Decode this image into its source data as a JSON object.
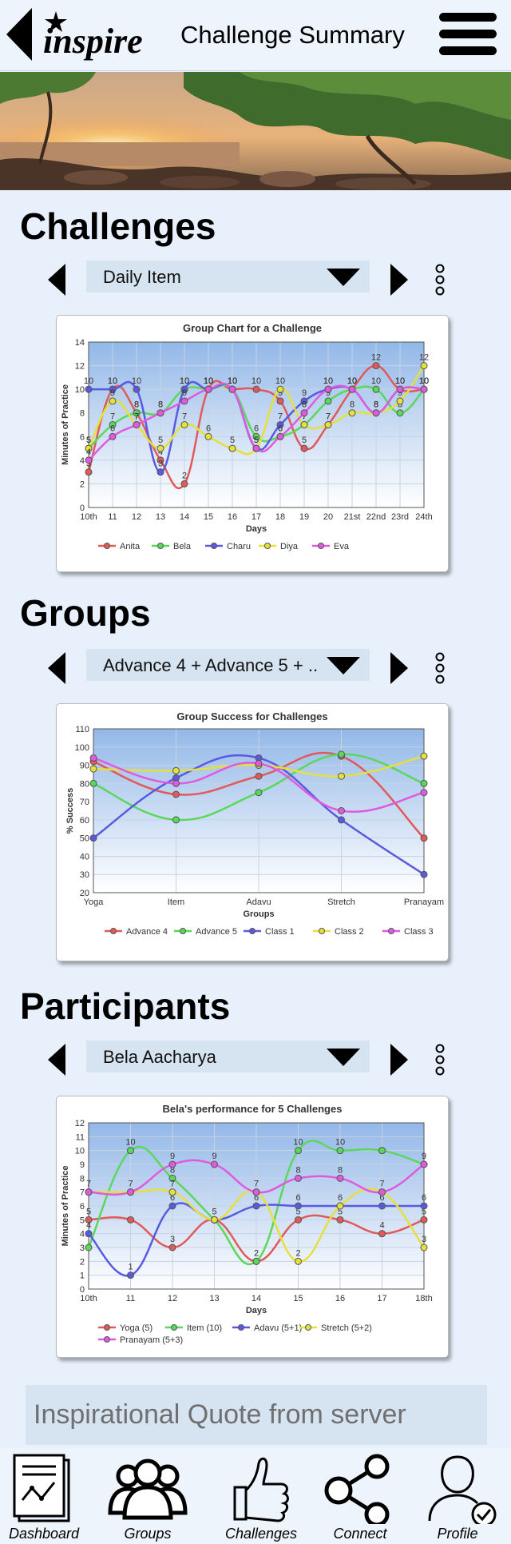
{
  "header": {
    "logo_text": "inspire",
    "title": "Challenge Summary"
  },
  "sections": [
    {
      "title": "Challenges",
      "selector": "Daily Item"
    },
    {
      "title": "Groups",
      "selector": "Advance 4 + Advance 5 + ..."
    },
    {
      "title": "Participants",
      "selector": "Bela Aacharya"
    }
  ],
  "quote": "Inspirational Quote from server",
  "nav": [
    {
      "label": "Dashboard",
      "icon": "dashboard-icon"
    },
    {
      "label": "Groups",
      "icon": "groups-icon"
    },
    {
      "label": "Challenges",
      "icon": "thumbs-up-icon"
    },
    {
      "label": "Connect",
      "icon": "share-icon"
    },
    {
      "label": "Profile",
      "icon": "profile-check-icon"
    }
  ],
  "chart_data": [
    {
      "type": "line",
      "title": "Group Chart for a Challenge",
      "xlabel": "Days",
      "ylabel": "Minutes of Practice",
      "categories": [
        "10th",
        "11",
        "12",
        "13",
        "14",
        "15",
        "16",
        "17",
        "18",
        "19",
        "20",
        "21st",
        "22nd",
        "23rd",
        "24th"
      ],
      "ylim": [
        0,
        14
      ],
      "yticks": [
        0,
        2,
        4,
        6,
        8,
        10,
        12,
        14
      ],
      "legend": "bottom",
      "series": [
        {
          "name": "Anita",
          "color": "#e05a5a",
          "values": [
            3,
            10,
            8,
            4,
            2,
            10,
            10,
            10,
            9,
            5,
            7,
            10,
            12,
            10,
            10
          ],
          "labels": [
            3,
            10,
            8,
            4,
            2,
            10,
            10,
            10,
            9,
            5,
            7,
            10,
            12,
            10,
            10
          ]
        },
        {
          "name": "Bela",
          "color": "#5ad85a",
          "values": [
            5,
            7,
            8,
            8,
            10,
            10,
            10,
            6,
            6,
            7,
            9,
            10,
            10,
            8,
            10
          ],
          "labels": [
            5,
            7,
            8,
            8,
            10,
            10,
            10,
            6,
            6,
            7,
            9,
            10,
            10,
            8,
            10
          ]
        },
        {
          "name": "Charu",
          "color": "#5a5ae0",
          "values": [
            10,
            10,
            10,
            3,
            10,
            10,
            10,
            5,
            7,
            9,
            10,
            10,
            8,
            10,
            10
          ],
          "labels": [
            10,
            10,
            10,
            3,
            10,
            10,
            10,
            5,
            7,
            9,
            10,
            10,
            8,
            10,
            10
          ]
        },
        {
          "name": "Diya",
          "color": "#e6e03c",
          "values": [
            5,
            9,
            7,
            5,
            7,
            6,
            5,
            5,
            10,
            7,
            7,
            8,
            8,
            9,
            12
          ],
          "labels": [
            5,
            9,
            7,
            5,
            7,
            6,
            5,
            5,
            10,
            7,
            7,
            8,
            8,
            9,
            12
          ]
        },
        {
          "name": "Eva",
          "color": "#e05ae0",
          "values": [
            4,
            6,
            7,
            8,
            9,
            10,
            10,
            5,
            6,
            8,
            10,
            10,
            8,
            10,
            10
          ],
          "labels": [
            4,
            6,
            7,
            8,
            9,
            10,
            10,
            5,
            6,
            8,
            10,
            10,
            8,
            10,
            10
          ]
        }
      ]
    },
    {
      "type": "line",
      "title": "Group Success for Challenges",
      "xlabel": "Groups",
      "ylabel": "% Success",
      "categories": [
        "Yoga",
        "Item",
        "Adavu",
        "Stretch",
        "Pranayam"
      ],
      "ylim": [
        20,
        110
      ],
      "yticks": [
        20,
        30,
        40,
        50,
        60,
        70,
        80,
        90,
        100,
        110
      ],
      "legend": "bottom",
      "series": [
        {
          "name": "Advance 4",
          "color": "#e05a5a",
          "values": [
            92,
            74,
            84,
            95,
            50
          ]
        },
        {
          "name": "Advance 5",
          "color": "#5ad85a",
          "values": [
            80,
            60,
            75,
            96,
            80
          ]
        },
        {
          "name": "Class 1",
          "color": "#5a5ae0",
          "values": [
            50,
            83,
            94,
            60,
            30
          ]
        },
        {
          "name": "Class 2",
          "color": "#e6e03c",
          "values": [
            88,
            87,
            90,
            84,
            95
          ]
        },
        {
          "name": "Class 3",
          "color": "#e05ae0",
          "values": [
            94,
            80,
            91,
            65,
            75
          ]
        }
      ]
    },
    {
      "type": "line",
      "title": "Bela's performance for 5 Challenges",
      "xlabel": "Days",
      "ylabel": "Minutes of Practice",
      "categories": [
        "10th",
        "11",
        "12",
        "13",
        "14",
        "15",
        "16",
        "17",
        "18th"
      ],
      "ylim": [
        0,
        12
      ],
      "yticks": [
        0,
        1,
        2,
        3,
        4,
        5,
        6,
        7,
        8,
        9,
        10,
        11,
        12
      ],
      "legend": "bottom",
      "series": [
        {
          "name": "Yoga (5)",
          "color": "#e05a5a",
          "values": [
            5,
            5,
            3,
            5,
            2,
            5,
            5,
            4,
            5
          ],
          "labels": [
            5,
            null,
            3,
            5,
            2,
            5,
            5,
            4,
            5
          ]
        },
        {
          "name": "Item (10)",
          "color": "#5ad85a",
          "values": [
            3,
            10,
            8,
            5,
            2,
            10,
            10,
            10,
            9
          ],
          "labels": [
            null,
            10,
            8,
            null,
            null,
            10,
            10,
            null,
            9
          ]
        },
        {
          "name": "Adavu (5+1)",
          "color": "#5a5ae0",
          "values": [
            4,
            1,
            6,
            5,
            6,
            6,
            6,
            6,
            6
          ],
          "labels": [
            4,
            1,
            6,
            null,
            6,
            6,
            6,
            6,
            6
          ]
        },
        {
          "name": "Stretch (5+2)",
          "color": "#e6e03c",
          "values": [
            7,
            7,
            7,
            5,
            7,
            2,
            6,
            7,
            3
          ],
          "labels": [
            null,
            null,
            7,
            null,
            7,
            2,
            null,
            7,
            3
          ]
        },
        {
          "name": "Pranayam (5+3)",
          "color": "#e05ae0",
          "values": [
            7,
            7,
            9,
            9,
            7,
            8,
            8,
            7,
            9
          ],
          "labels": [
            7,
            7,
            9,
            9,
            null,
            8,
            8,
            null,
            null
          ]
        }
      ]
    }
  ]
}
